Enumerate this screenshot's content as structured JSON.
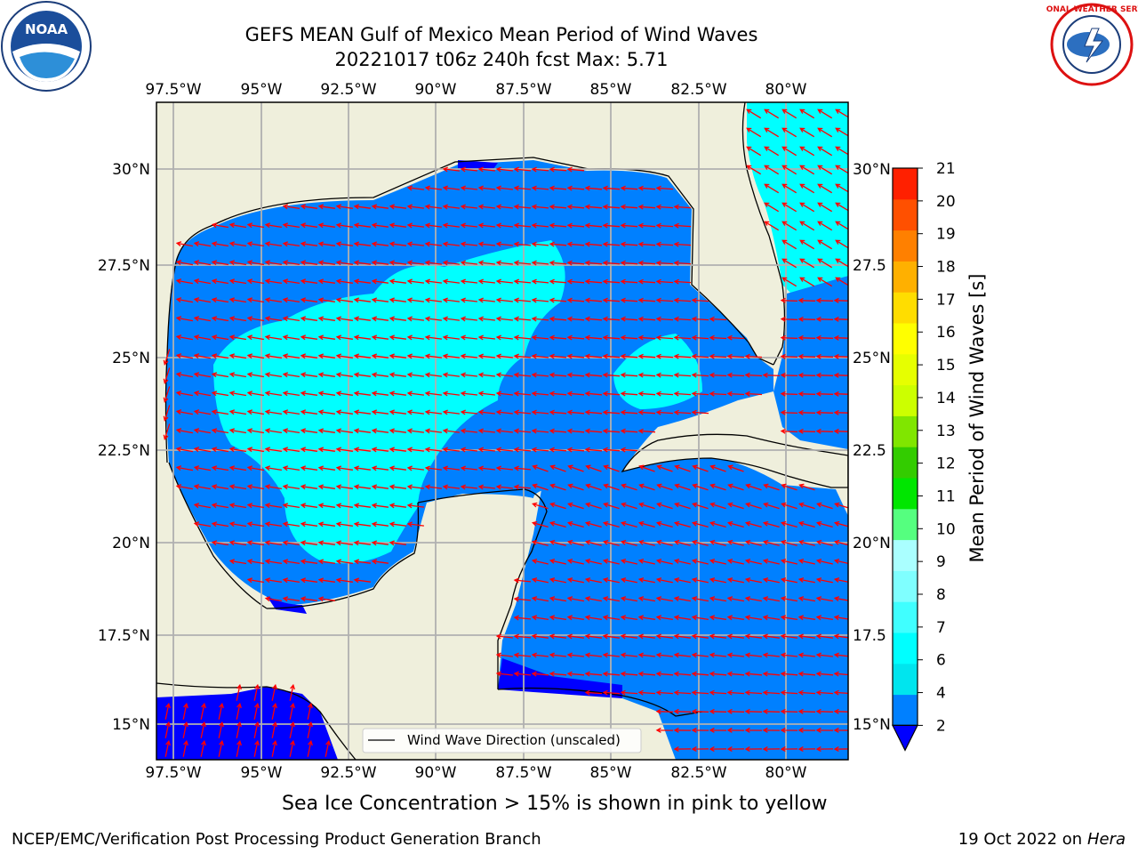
{
  "title_line1": "GEFS MEAN Gulf of Mexico Mean Period of Wind Waves",
  "title_line2": "20221017 t06z 240h fcst   Max: 5.71",
  "lon_labels": [
    "97.5°W",
    "95°W",
    "92.5°W",
    "90°W",
    "87.5°W",
    "85°W",
    "82.5°W",
    "80°W"
  ],
  "lat_labels_left": [
    "30°N",
    "27.5°N",
    "25°N",
    "22.5°N",
    "20°N",
    "17.5°N",
    "15°N"
  ],
  "lat_labels_right": [
    "30°N",
    "27.5",
    "25°N",
    "22.5",
    "20°N",
    "17.5",
    "15°N"
  ],
  "colorbar": {
    "label": "Mean Period of Wind Waves [s]",
    "ticks": [
      "2",
      "4",
      "6",
      "7",
      "8",
      "9",
      "10",
      "11",
      "12",
      "13",
      "14",
      "15",
      "16",
      "17",
      "18",
      "19",
      "20",
      "21"
    ],
    "colors": [
      "#0080ff",
      "#00e5ee",
      "#00ffff",
      "#40ffff",
      "#7fffff",
      "#aaffff",
      "#55ff7f",
      "#00e600",
      "#33cc00",
      "#80e600",
      "#ccff00",
      "#e6ff00",
      "#ffff00",
      "#ffdd00",
      "#ffb000",
      "#ff8000",
      "#ff5000",
      "#ff2000",
      "#ff0000"
    ],
    "extend_color": "#0000ff"
  },
  "legend_label": "Wind Wave Direction (unscaled)",
  "subcaption": "Sea Ice Concentration > 15% is shown in pink to yellow",
  "footer_left": "NCEP/EMC/Verification Post Processing Product Generation Branch",
  "footer_right_date": "19 Oct 2022 on ",
  "footer_right_host": "Hera",
  "logo_left": "NOAA",
  "logo_right": "NATIONAL WEATHER SERVICE",
  "colors": {
    "land": "#efefdc",
    "water_low": "#0080ff",
    "water_mid": "#00ffff",
    "water_deep": "#0000ff",
    "arrow": "#ff0000",
    "grid": "#b0b0b0"
  },
  "icons": [
    "noaa-logo-icon",
    "nws-logo-icon"
  ]
}
